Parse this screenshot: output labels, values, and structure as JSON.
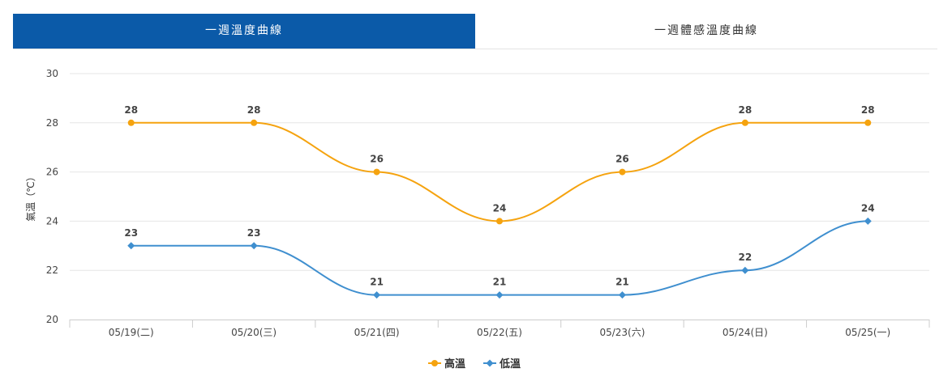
{
  "tabs": [
    {
      "label": "一週溫度曲線",
      "active": true
    },
    {
      "label": "一週體感溫度曲線",
      "active": false
    }
  ],
  "colors": {
    "tab_active": "#0b5aa8",
    "high": "#f5a30f",
    "low": "#3f8fcf",
    "grid": "#e6e6e6"
  },
  "chart_data": {
    "type": "line",
    "categories": [
      "05/19(二)",
      "05/20(三)",
      "05/21(四)",
      "05/22(五)",
      "05/23(六)",
      "05/24(日)",
      "05/25(一)"
    ],
    "series": [
      {
        "name": "高溫",
        "values": [
          28,
          28,
          26,
          24,
          26,
          28,
          28
        ],
        "marker": "circle"
      },
      {
        "name": "低溫",
        "values": [
          23,
          23,
          21,
          21,
          21,
          22,
          24
        ],
        "marker": "diamond"
      }
    ],
    "ylabel": "氣溫（℃）",
    "ylim": [
      20,
      30
    ],
    "yticks": [
      20,
      22,
      24,
      26,
      28,
      30
    ],
    "grid": true,
    "smooth": true,
    "data_labels": true,
    "legend_position": "bottom-center"
  }
}
